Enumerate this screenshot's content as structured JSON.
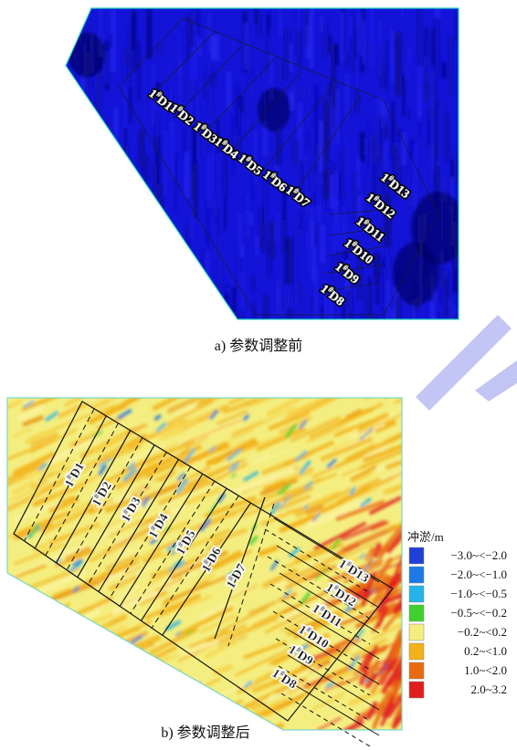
{
  "panels": {
    "top": {
      "caption": "a) 参数调整前",
      "labels": [
        {
          "pre": "1",
          "sup": "#",
          "post": "D1"
        },
        {
          "pre": "1",
          "sup": "#",
          "post": "D2"
        },
        {
          "pre": "1",
          "sup": "#",
          "post": "D3"
        },
        {
          "pre": "1",
          "sup": "#",
          "post": "D4"
        },
        {
          "pre": "1",
          "sup": "#",
          "post": "D5"
        },
        {
          "pre": "1",
          "sup": "#",
          "post": "D6"
        },
        {
          "pre": "1",
          "sup": "#",
          "post": "D7"
        },
        {
          "pre": "1",
          "sup": "#",
          "post": "D13"
        },
        {
          "pre": "1",
          "sup": "#",
          "post": "D12"
        },
        {
          "pre": "1",
          "sup": "#",
          "post": "D11"
        },
        {
          "pre": "1",
          "sup": "#",
          "post": "D10"
        },
        {
          "pre": "1",
          "sup": "#",
          "post": "D9"
        },
        {
          "pre": "1",
          "sup": "#",
          "post": "D8"
        }
      ]
    },
    "bottom": {
      "caption": "b) 参数调整后",
      "labels": [
        {
          "pre": "1",
          "sup": "#",
          "post": "D1"
        },
        {
          "pre": "1",
          "sup": "#",
          "post": "D2"
        },
        {
          "pre": "1",
          "sup": "#",
          "post": "D3"
        },
        {
          "pre": "1",
          "sup": "#",
          "post": "D4"
        },
        {
          "pre": "1",
          "sup": "#",
          "post": "D5"
        },
        {
          "pre": "1",
          "sup": "#",
          "post": "D6"
        },
        {
          "pre": "1",
          "sup": "#",
          "post": "D7"
        },
        {
          "pre": "1",
          "sup": "#",
          "post": "D13"
        },
        {
          "pre": "1",
          "sup": "#",
          "post": "D12"
        },
        {
          "pre": "1",
          "sup": "#",
          "post": "D11"
        },
        {
          "pre": "1",
          "sup": "#",
          "post": "D10"
        },
        {
          "pre": "1",
          "sup": "#",
          "post": "D9"
        },
        {
          "pre": "1",
          "sup": "#",
          "post": "D8"
        }
      ]
    }
  },
  "legend": {
    "title": "冲淤/m",
    "items": [
      {
        "label": "−3.0~<−2.0",
        "color": "#1f3fd6"
      },
      {
        "label": "−2.0~<−1.0",
        "color": "#1e78e6"
      },
      {
        "label": "−1.0~<−0.5",
        "color": "#24b4e8"
      },
      {
        "label": "−0.5~<−0.2",
        "color": "#3ed12e"
      },
      {
        "label": "−0.2~<0.2",
        "color": "#f4ee80"
      },
      {
        "label": "0.2~<1.0",
        "color": "#f2b21a"
      },
      {
        "label": "1.0~<2.0",
        "color": "#ea6a12"
      },
      {
        "label": "2.0~3.2",
        "color": "#e21d1d"
      }
    ]
  }
}
